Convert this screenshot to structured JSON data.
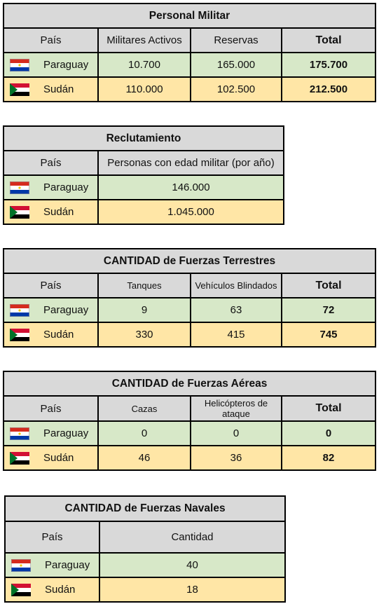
{
  "personal_militar": {
    "title": "Personal Militar",
    "headers": [
      "País",
      "Militares Activos",
      "Reservas",
      "Total"
    ],
    "rows": [
      {
        "country": "Paraguay",
        "flag": "paraguay-flag-icon",
        "activos": "10.700",
        "reservas": "165.000",
        "total": "175.700"
      },
      {
        "country": "Sudán",
        "flag": "sudan-flag-icon",
        "activos": "110.000",
        "reservas": "102.500",
        "total": "212.500"
      }
    ]
  },
  "reclutamiento": {
    "title": "Reclutamiento",
    "headers": [
      "País",
      "Personas con edad militar (por año)"
    ],
    "rows": [
      {
        "country": "Paraguay",
        "flag": "paraguay-flag-icon",
        "value": "146.000"
      },
      {
        "country": "Sudán",
        "flag": "sudan-flag-icon",
        "value": "1.045.000"
      }
    ]
  },
  "terrestres": {
    "title": "CANTIDAD de Fuerzas Terrestres",
    "headers": [
      "País",
      "Tanques",
      "Vehículos Blindados",
      "Total"
    ],
    "rows": [
      {
        "country": "Paraguay",
        "flag": "paraguay-flag-icon",
        "a": "9",
        "b": "63",
        "total": "72"
      },
      {
        "country": "Sudán",
        "flag": "sudan-flag-icon",
        "a": "330",
        "b": "415",
        "total": "745"
      }
    ]
  },
  "aereas": {
    "title": "CANTIDAD de Fuerzas Aéreas",
    "headers": [
      "País",
      "Cazas",
      "Helicópteros de ataque",
      "Total"
    ],
    "rows": [
      {
        "country": "Paraguay",
        "flag": "paraguay-flag-icon",
        "a": "0",
        "b": "0",
        "total": "0"
      },
      {
        "country": "Sudán",
        "flag": "sudan-flag-icon",
        "a": "46",
        "b": "36",
        "total": "82"
      }
    ]
  },
  "navales": {
    "title": "CANTIDAD de Fuerzas Navales",
    "headers": [
      "País",
      "Cantidad"
    ],
    "rows": [
      {
        "country": "Paraguay",
        "flag": "paraguay-flag-icon",
        "value": "40"
      },
      {
        "country": "Sudán",
        "flag": "sudan-flag-icon",
        "value": "18"
      }
    ]
  },
  "colors": {
    "paraguay_row": "#d7e8c8",
    "sudan_row": "#ffe6a6",
    "header": "#d9d9d9"
  }
}
